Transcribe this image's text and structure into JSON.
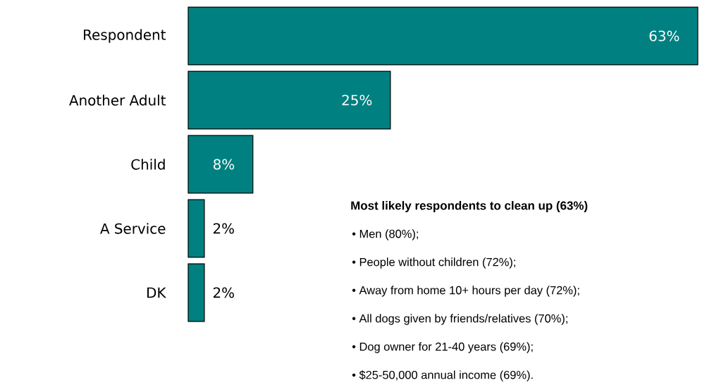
{
  "chart_data": {
    "type": "bar",
    "orientation": "horizontal",
    "color": "#008080",
    "categories": [
      "Respondent",
      "Another Adult",
      "Child",
      "A Service",
      "DK"
    ],
    "values": [
      63,
      25,
      8,
      2,
      2
    ],
    "value_labels": [
      "63%",
      "25%",
      "8%",
      "2%",
      "2%"
    ],
    "annotations": [
      "Most likely respondents to clean up  (63%)",
      "• Men (80%);",
      "• People without children (72%);",
      "• Away from home 10+ hours per day (72%);",
      "• All dogs given by friends/relatives (70%);",
      "• Dog owner for 21-40 years (69%);",
      "• $25-50,000 annual income (69%)."
    ]
  }
}
